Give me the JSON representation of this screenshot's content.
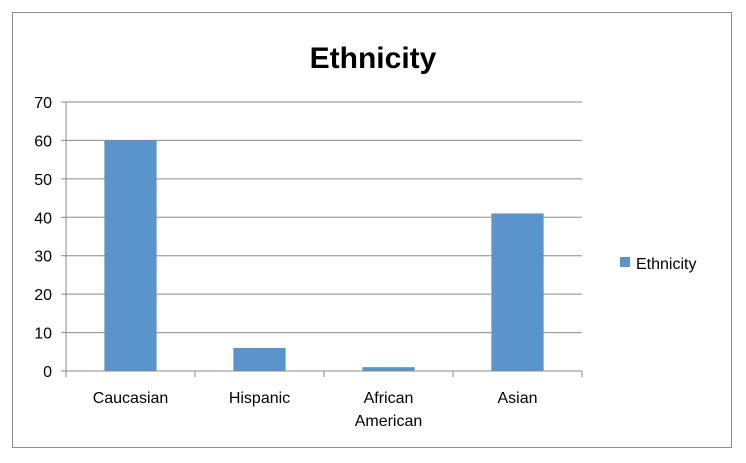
{
  "chart_data": {
    "type": "bar",
    "title": "Ethnicity",
    "categories": [
      "Caucasian",
      "Hispanic",
      "African American",
      "Asian"
    ],
    "category_labels": [
      [
        "Caucasian"
      ],
      [
        "Hispanic"
      ],
      [
        "African",
        "American"
      ],
      [
        "Asian"
      ]
    ],
    "series": [
      {
        "name": "Ethnicity",
        "values": [
          60,
          6,
          1,
          41
        ],
        "color": "#5b93cc"
      }
    ],
    "ylim": [
      0,
      70
    ],
    "yticks": [
      "0",
      "10",
      "20",
      "30",
      "40",
      "50",
      "60",
      "70"
    ],
    "grid": true,
    "legend": "right"
  }
}
